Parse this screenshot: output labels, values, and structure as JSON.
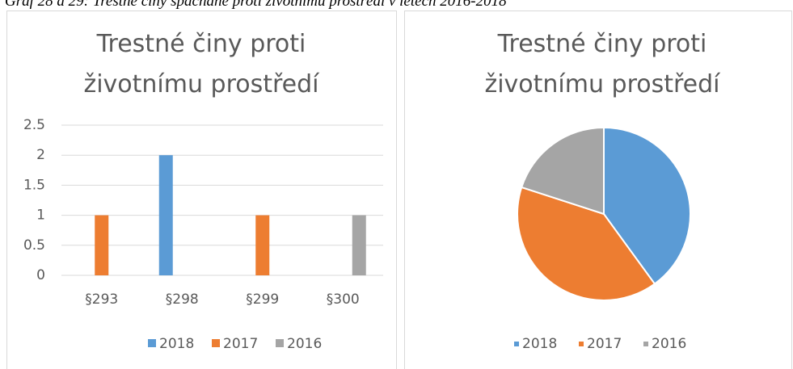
{
  "caption": "Graf 28 a 29: Trestné činy spáchané proti životnímu prostředí v letech 2016-2018",
  "chart_data": [
    {
      "type": "bar",
      "title": "Trestné činy proti životnímu prostředí",
      "categories": [
        "§293",
        "§298",
        "§299",
        "§300"
      ],
      "series": [
        {
          "name": "2018",
          "color": "#5b9bd5",
          "values": [
            0,
            2,
            0,
            0
          ]
        },
        {
          "name": "2017",
          "color": "#ed7d31",
          "values": [
            1,
            0,
            1,
            0
          ]
        },
        {
          "name": "2016",
          "color": "#a5a5a5",
          "values": [
            0,
            0,
            0,
            1
          ]
        }
      ],
      "ylim": [
        0,
        2.5
      ],
      "yticks": [
        0,
        0.5,
        1,
        1.5,
        2,
        2.5
      ],
      "grid": true,
      "legend": "bottom"
    },
    {
      "type": "pie",
      "title": "Trestné činy proti životnímu prostředí",
      "categories": [
        "2018",
        "2017",
        "2016"
      ],
      "values": [
        2,
        2,
        1
      ],
      "colors": [
        "#5b9bd5",
        "#ed7d31",
        "#a5a5a5"
      ],
      "legend": "bottom"
    }
  ]
}
